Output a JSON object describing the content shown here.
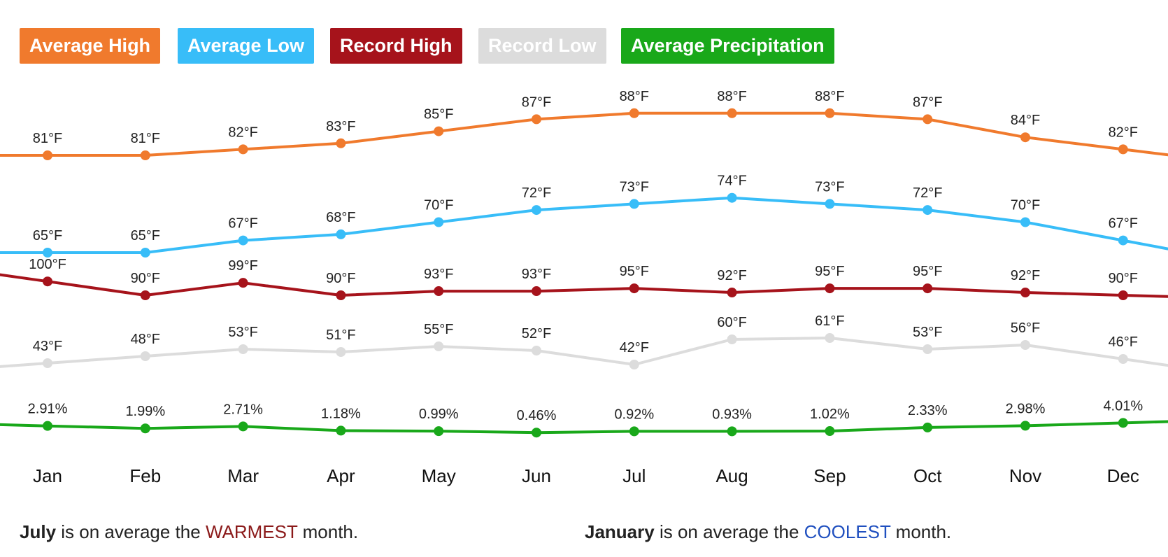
{
  "legend": {
    "buttons": [
      {
        "key": "avg_high",
        "label": "Average High",
        "color": "#f07a2d"
      },
      {
        "key": "avg_low",
        "label": "Average Low",
        "color": "#38bdf8"
      },
      {
        "key": "rec_high",
        "label": "Record High",
        "color": "#a6131b"
      },
      {
        "key": "rec_low",
        "label": "Record Low",
        "color": "#dcdcdc"
      },
      {
        "key": "avg_precip",
        "label": "Average Precipitation",
        "color": "#19a81a"
      }
    ]
  },
  "chart_data": {
    "type": "line",
    "categories": [
      "Jan",
      "Feb",
      "Mar",
      "Apr",
      "May",
      "Jun",
      "Jul",
      "Aug",
      "Sep",
      "Oct",
      "Nov",
      "Dec"
    ],
    "series": [
      {
        "name": "Average High",
        "color": "#f07a2d",
        "unit": "°F",
        "values": [
          81,
          81,
          82,
          83,
          85,
          87,
          88,
          88,
          88,
          87,
          84,
          82
        ],
        "labels": [
          "81°F",
          "81°F",
          "82°F",
          "83°F",
          "85°F",
          "87°F",
          "88°F",
          "88°F",
          "88°F",
          "87°F",
          "84°F",
          "82°F"
        ]
      },
      {
        "name": "Average Low",
        "color": "#38bdf8",
        "unit": "°F",
        "values": [
          65,
          65,
          67,
          68,
          70,
          72,
          73,
          74,
          73,
          72,
          70,
          67
        ],
        "labels": [
          "65°F",
          "65°F",
          "67°F",
          "68°F",
          "70°F",
          "72°F",
          "73°F",
          "74°F",
          "73°F",
          "72°F",
          "70°F",
          "67°F"
        ]
      },
      {
        "name": "Record High",
        "color": "#a6131b",
        "unit": "°F",
        "values": [
          100,
          90,
          99,
          90,
          93,
          93,
          95,
          92,
          95,
          95,
          92,
          90
        ],
        "labels": [
          "100°F",
          "90°F",
          "99°F",
          "90°F",
          "93°F",
          "93°F",
          "95°F",
          "92°F",
          "95°F",
          "95°F",
          "92°F",
          "90°F"
        ]
      },
      {
        "name": "Record Low",
        "color": "#dcdcdc",
        "unit": "°F",
        "values": [
          43,
          48,
          53,
          51,
          55,
          52,
          42,
          60,
          61,
          53,
          56,
          46
        ],
        "labels": [
          "43°F",
          "48°F",
          "53°F",
          "51°F",
          "55°F",
          "52°F",
          "42°F",
          "60°F",
          "61°F",
          "53°F",
          "56°F",
          "46°F"
        ]
      },
      {
        "name": "Average Precipitation",
        "color": "#19a81a",
        "unit": "%",
        "values": [
          2.91,
          1.99,
          2.71,
          1.18,
          0.99,
          0.46,
          0.92,
          0.93,
          1.02,
          2.33,
          2.98,
          4.01
        ],
        "labels": [
          "2.91%",
          "1.99%",
          "2.71%",
          "1.18%",
          "0.99%",
          "0.46%",
          "0.92%",
          "0.93%",
          "1.02%",
          "2.33%",
          "2.98%",
          "4.01%"
        ]
      }
    ]
  },
  "summary": {
    "warm_month": "July",
    "warm_mid": " is on average the ",
    "warm_word": "WARMEST",
    "warm_end": " month.",
    "warm_color": "#8b1a1a",
    "cool_month": "January",
    "cool_mid": " is on average the ",
    "cool_word": "COOLEST",
    "cool_end": " month.",
    "cool_color": "#1f4fbf"
  }
}
